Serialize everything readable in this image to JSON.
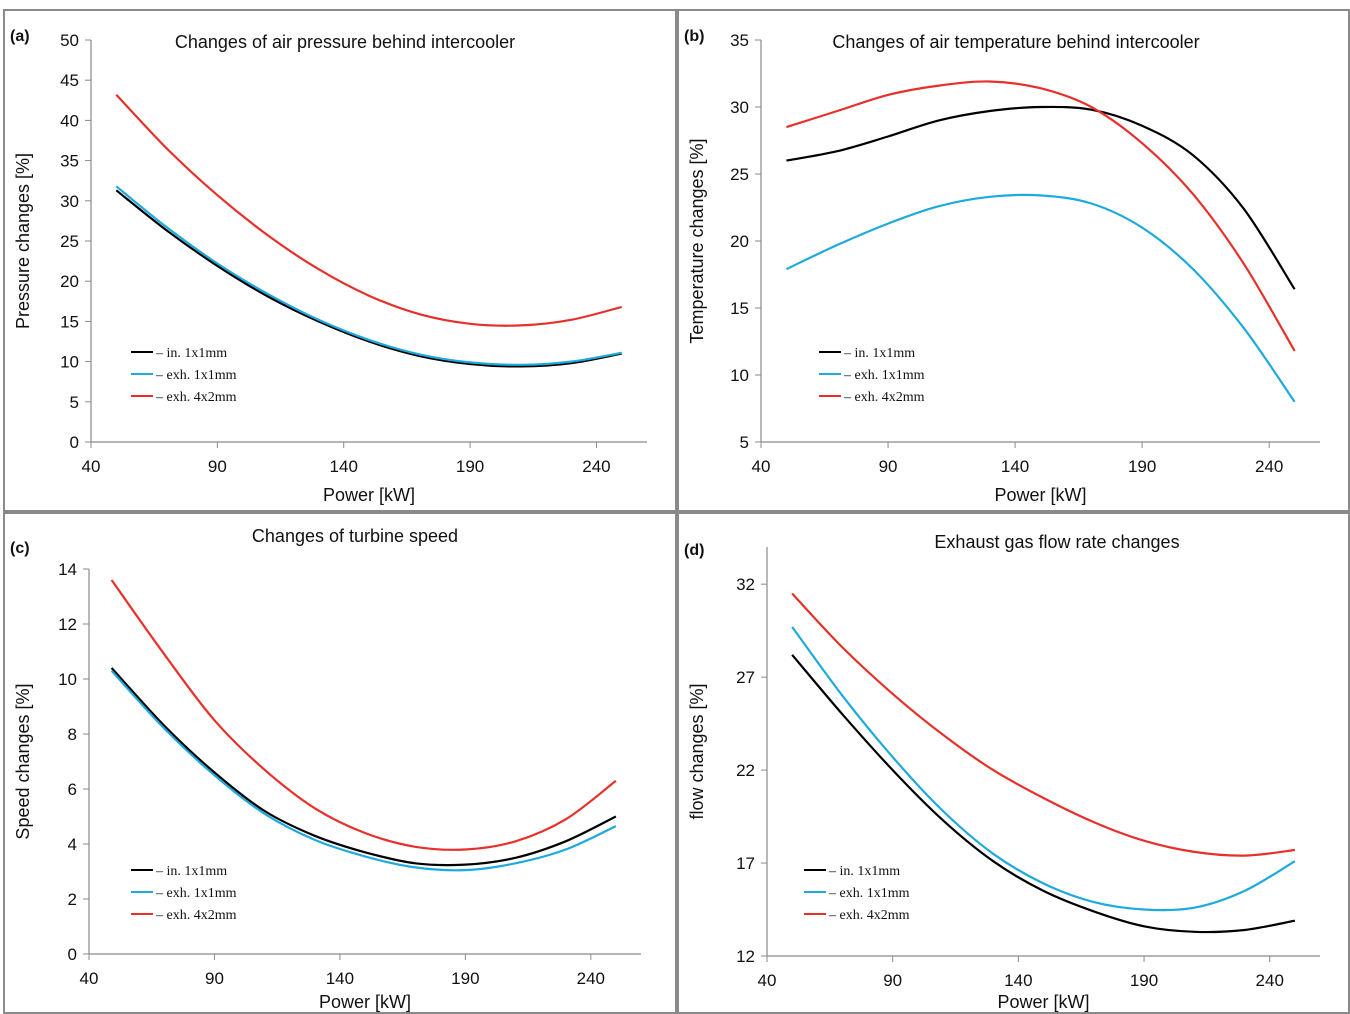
{
  "chart_data": [
    {
      "type": "line",
      "panel_label": "(a)",
      "title": "Changes of air pressure behind intercooler",
      "xlabel": "Power [kW]",
      "ylabel": "Pressure changes [%]",
      "xlim": [
        40,
        260
      ],
      "ylim": [
        0,
        50
      ],
      "xticks": [
        40,
        90,
        140,
        190,
        240
      ],
      "yticks": [
        0,
        5,
        10,
        15,
        20,
        25,
        30,
        35,
        40,
        45,
        50
      ],
      "legend_position": "bottom-left",
      "grid": false,
      "series": [
        {
          "name": "– in. 1x1mm",
          "color": "#000000",
          "x": [
            50,
            70,
            90,
            110,
            130,
            150,
            170,
            190,
            210,
            230,
            250
          ],
          "y": [
            31.3,
            26.3,
            21.9,
            18.1,
            15.0,
            12.5,
            10.7,
            9.7,
            9.4,
            9.8,
            11.0
          ]
        },
        {
          "name": "– exh. 1x1mm",
          "color": "#1eaadc",
          "x": [
            50,
            70,
            90,
            110,
            130,
            150,
            170,
            190,
            210,
            230,
            250
          ],
          "y": [
            31.8,
            26.7,
            22.2,
            18.4,
            15.2,
            12.7,
            10.9,
            9.9,
            9.6,
            10.0,
            11.1
          ]
        },
        {
          "name": "– exh. 4x2mm",
          "color": "#e8302a",
          "x": [
            50,
            70,
            90,
            110,
            130,
            150,
            170,
            190,
            210,
            230,
            250
          ],
          "y": [
            43.2,
            36.5,
            30.7,
            25.7,
            21.5,
            18.2,
            15.9,
            14.7,
            14.5,
            15.2,
            16.8
          ]
        }
      ]
    },
    {
      "type": "line",
      "panel_label": "(b)",
      "title": "Changes of air temperature behind intercooler",
      "xlabel": "Power [kW]",
      "ylabel": "Temperature changes [%]",
      "xlim": [
        40,
        260
      ],
      "ylim": [
        5,
        35
      ],
      "xticks": [
        40,
        90,
        140,
        190,
        240
      ],
      "yticks": [
        5,
        10,
        15,
        20,
        25,
        30,
        35
      ],
      "legend_position": "bottom-left",
      "grid": false,
      "series": [
        {
          "name": "– in. 1x1mm",
          "color": "#000000",
          "x": [
            50,
            70,
            90,
            110,
            130,
            150,
            170,
            190,
            210,
            230,
            250
          ],
          "y": [
            26.0,
            26.7,
            27.8,
            29.0,
            29.7,
            30.0,
            29.8,
            28.6,
            26.4,
            22.4,
            16.4
          ]
        },
        {
          "name": "– exh. 1x1mm",
          "color": "#1eaadc",
          "x": [
            50,
            70,
            90,
            110,
            130,
            150,
            170,
            190,
            210,
            230,
            250
          ],
          "y": [
            17.9,
            19.7,
            21.3,
            22.6,
            23.3,
            23.4,
            22.8,
            21.0,
            17.9,
            13.5,
            8.0
          ]
        },
        {
          "name": "– exh. 4x2mm",
          "color": "#e8302a",
          "x": [
            50,
            70,
            90,
            110,
            130,
            150,
            170,
            190,
            210,
            230,
            250
          ],
          "y": [
            28.5,
            29.7,
            30.9,
            31.6,
            31.9,
            31.4,
            30.0,
            27.3,
            23.5,
            18.3,
            11.8
          ]
        }
      ]
    },
    {
      "type": "line",
      "panel_label": "(c)",
      "title": "Changes of turbine speed",
      "xlabel": "Power [kW]",
      "ylabel": "Speed changes [%]",
      "xlim": [
        40,
        260
      ],
      "ylim": [
        0,
        14
      ],
      "xticks": [
        40,
        90,
        140,
        190,
        240
      ],
      "yticks": [
        0,
        2,
        4,
        6,
        8,
        10,
        12,
        14
      ],
      "legend_position": "bottom-left",
      "grid": false,
      "series": [
        {
          "name": "– in. 1x1mm",
          "color": "#000000",
          "x": [
            49,
            70,
            90,
            110,
            130,
            150,
            170,
            190,
            210,
            230,
            250
          ],
          "y": [
            10.4,
            8.3,
            6.6,
            5.2,
            4.3,
            3.7,
            3.3,
            3.25,
            3.5,
            4.1,
            5.0
          ]
        },
        {
          "name": "– exh. 1x1mm",
          "color": "#1eaadc",
          "x": [
            49,
            70,
            90,
            110,
            130,
            150,
            170,
            190,
            210,
            230,
            250
          ],
          "y": [
            10.3,
            8.2,
            6.5,
            5.1,
            4.15,
            3.55,
            3.15,
            3.05,
            3.3,
            3.8,
            4.65
          ]
        },
        {
          "name": "– exh. 4x2mm",
          "color": "#e8302a",
          "x": [
            49,
            70,
            90,
            110,
            130,
            150,
            170,
            190,
            210,
            230,
            250
          ],
          "y": [
            13.6,
            10.9,
            8.5,
            6.7,
            5.3,
            4.4,
            3.9,
            3.8,
            4.1,
            4.9,
            6.3
          ]
        }
      ]
    },
    {
      "type": "line",
      "panel_label": "(d)",
      "title": "Exhaust gas flow rate changes",
      "xlabel": "Power [kW]",
      "ylabel": "flow changes [%]",
      "xlim": [
        40,
        260
      ],
      "ylim": [
        12,
        34
      ],
      "xticks": [
        40,
        90,
        140,
        190,
        240
      ],
      "yticks": [
        12,
        17,
        22,
        27,
        32
      ],
      "legend_position": "bottom-left",
      "grid": false,
      "series": [
        {
          "name": "– in. 1x1mm",
          "color": "#000000",
          "x": [
            50,
            70,
            90,
            110,
            130,
            150,
            170,
            190,
            210,
            230,
            250
          ],
          "y": [
            28.2,
            25.0,
            22.0,
            19.3,
            17.1,
            15.5,
            14.4,
            13.6,
            13.3,
            13.4,
            13.9
          ]
        },
        {
          "name": "– exh. 1x1mm",
          "color": "#1eaadc",
          "x": [
            50,
            70,
            90,
            110,
            130,
            150,
            170,
            190,
            210,
            230,
            250
          ],
          "y": [
            29.7,
            26.0,
            22.7,
            19.8,
            17.5,
            15.9,
            14.9,
            14.5,
            14.6,
            15.5,
            17.1
          ]
        },
        {
          "name": "– exh. 4x2mm",
          "color": "#e8302a",
          "x": [
            50,
            70,
            90,
            110,
            130,
            150,
            170,
            190,
            210,
            230,
            250
          ],
          "y": [
            31.5,
            28.6,
            26.1,
            23.9,
            22.0,
            20.5,
            19.2,
            18.2,
            17.6,
            17.4,
            17.7
          ]
        }
      ]
    }
  ]
}
